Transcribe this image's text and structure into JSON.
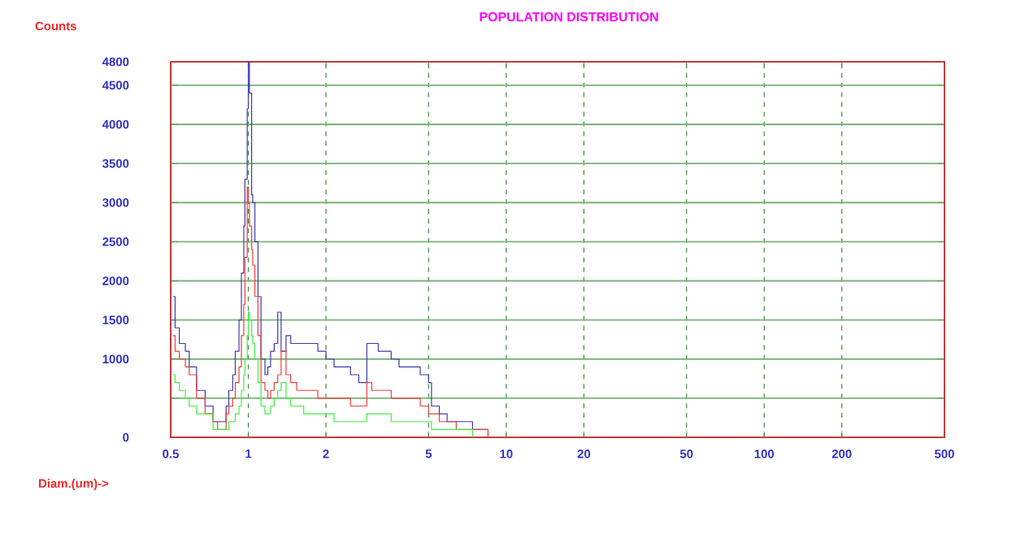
{
  "chart_data": {
    "type": "step",
    "title": "POPULATION DISTRIBUTION",
    "xlabel": "Diam.(um)->",
    "ylabel": "Counts",
    "log": "x",
    "grid": true,
    "marker": "none",
    "xlim": [
      0.5,
      500
    ],
    "xticks": [
      0.5,
      1,
      2,
      5,
      10,
      20,
      50,
      100,
      200,
      500
    ],
    "ylim": [
      0,
      4800
    ],
    "yticks": [
      0,
      {
        "value": 500,
        "label": null
      },
      1000,
      1500,
      2000,
      2500,
      3000,
      3500,
      4000,
      4500,
      4800
    ],
    "x": [
      0.51,
      0.52,
      0.54,
      0.57,
      0.59,
      0.63,
      0.68,
      0.73,
      0.76,
      0.79,
      0.82,
      0.84,
      0.87,
      0.89,
      0.92,
      0.94,
      0.96,
      0.97,
      0.99,
      1.0,
      1.01,
      1.03,
      1.04,
      1.06,
      1.09,
      1.12,
      1.16,
      1.19,
      1.22,
      1.26,
      1.3,
      1.34,
      1.4,
      1.46,
      1.54,
      1.64,
      1.73,
      1.86,
      2.0,
      2.15,
      2.32,
      2.49,
      2.68,
      2.8,
      2.88,
      3.01,
      3.19,
      3.38,
      3.58,
      3.84,
      4.12,
      4.64,
      5.0,
      5.13,
      5.5,
      5.9,
      6.4,
      7.4,
      8.5,
      9.9,
      11.4
    ],
    "series": [
      {
        "color": "#3c3ca8",
        "values": [
          1800,
          1400,
          1200,
          1100,
          900,
          600,
          400,
          200,
          200,
          200,
          400,
          600,
          800,
          1100,
          1500,
          2100,
          2700,
          3300,
          4200,
          4800,
          4400,
          3100,
          3000,
          2500,
          1800,
          1000,
          800,
          900,
          1100,
          1200,
          1600,
          1100,
          1300,
          1200,
          1200,
          1200,
          1200,
          1100,
          1000,
          900,
          900,
          800,
          700,
          700,
          1200,
          1200,
          1100,
          1100,
          1000,
          900,
          900,
          800,
          700,
          400,
          300,
          200,
          200,
          100,
          0,
          null,
          null
        ]
      },
      {
        "color": "#f03c3c",
        "values": [
          1300,
          1100,
          1000,
          900,
          800,
          500,
          300,
          200,
          100,
          100,
          300,
          400,
          500,
          700,
          900,
          1300,
          1700,
          2300,
          3200,
          3000,
          2700,
          2400,
          2200,
          1800,
          1300,
          700,
          600,
          500,
          600,
          700,
          800,
          1100,
          800,
          700,
          600,
          600,
          600,
          500,
          500,
          500,
          500,
          400,
          400,
          400,
          700,
          600,
          600,
          600,
          500,
          500,
          500,
          400,
          300,
          300,
          200,
          200,
          100,
          100,
          0,
          0,
          0
        ]
      },
      {
        "color": "#3cf03c",
        "values": [
          800,
          700,
          600,
          500,
          400,
          300,
          300,
          100,
          100,
          100,
          100,
          200,
          200,
          300,
          400,
          600,
          800,
          1000,
          1300,
          1600,
          1500,
          1300,
          1200,
          1000,
          700,
          400,
          300,
          300,
          400,
          500,
          600,
          700,
          500,
          400,
          400,
          300,
          300,
          300,
          300,
          200,
          200,
          200,
          200,
          200,
          300,
          300,
          300,
          300,
          200,
          200,
          200,
          200,
          200,
          100,
          100,
          100,
          100,
          0,
          null,
          null,
          null
        ]
      }
    ]
  }
}
